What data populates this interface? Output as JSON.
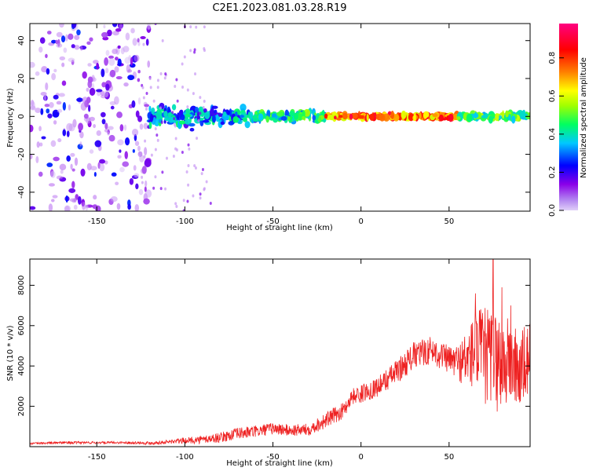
{
  "title": "C2E1.2023.081.03.28.R19",
  "chart_data": [
    {
      "type": "heatmap",
      "xlabel": "Height of straight line (km)",
      "ylabel": "Frequency (Hz)",
      "xlim": [
        -188,
        96
      ],
      "ylim": [
        -50,
        49
      ],
      "x_ticks": [
        -150,
        -100,
        -50,
        0,
        50
      ],
      "y_ticks": [
        -40,
        -20,
        0,
        20,
        40
      ],
      "grid": false,
      "colorbar": {
        "label": "Normalized spectral amplitude",
        "range": [
          0,
          0.98
        ],
        "ticks": [
          0.0,
          0.2,
          0.4,
          0.6,
          0.8
        ],
        "colors": [
          "#e0d0f8",
          "#8a00e8",
          "#0000ff",
          "#00c8ff",
          "#00ff60",
          "#a0ff00",
          "#ffff00",
          "#ff8000",
          "#ff0000",
          "#ff0080"
        ]
      },
      "regions": [
        {
          "x": [
            -188,
            -120
          ],
          "freq_spread": 50,
          "amplitude": [
            0.02,
            0.25
          ]
        },
        {
          "x": [
            -120,
            -60
          ],
          "freq_spread": 10,
          "amplitude": [
            0.15,
            0.45
          ]
        },
        {
          "x": [
            -60,
            -20
          ],
          "freq_spread": 5,
          "amplitude": [
            0.25,
            0.55
          ]
        },
        {
          "x": [
            -20,
            55
          ],
          "freq_spread": 2,
          "amplitude": [
            0.6,
            0.95
          ]
        },
        {
          "x": [
            55,
            96
          ],
          "freq_spread": 3,
          "amplitude": [
            0.3,
            0.6
          ]
        }
      ]
    },
    {
      "type": "line",
      "xlabel": "Height of straight line (km)",
      "ylabel": "SNR (10 * v/v)",
      "xlim": [
        -188,
        96
      ],
      "ylim": [
        0,
        9300
      ],
      "x_ticks": [
        -150,
        -100,
        -50,
        0,
        50
      ],
      "y_ticks": [
        2000,
        4000,
        6000,
        8000
      ],
      "grid": false,
      "series": [
        {
          "color": "#ee2020",
          "x": [
            -188,
            -170,
            -150,
            -130,
            -120,
            -110,
            -100,
            -90,
            -80,
            -70,
            -60,
            -50,
            -40,
            -30,
            -20,
            -10,
            -5,
            0,
            10,
            20,
            30,
            40,
            50,
            55,
            60,
            65,
            70,
            75,
            80,
            85,
            90,
            96
          ],
          "y": [
            150,
            200,
            200,
            200,
            180,
            230,
            300,
            350,
            450,
            650,
            750,
            900,
            800,
            850,
            1300,
            1800,
            2500,
            2600,
            3000,
            3700,
            4500,
            4800,
            4300,
            4200,
            4300,
            4800,
            4500,
            4300,
            4100,
            4200,
            3700,
            4300
          ],
          "noise": [
            50,
            60,
            60,
            60,
            80,
            100,
            150,
            200,
            250,
            300,
            300,
            300,
            300,
            300,
            400,
            400,
            400,
            450,
            500,
            600,
            700,
            700,
            700,
            900,
            1500,
            2000,
            2500,
            2500,
            2500,
            2200,
            2000,
            2000
          ],
          "peaks": [
            [
              75,
              9300
            ],
            [
              65,
              7600
            ],
            [
              80,
              7900
            ],
            [
              85,
              7000
            ]
          ]
        }
      ]
    }
  ]
}
